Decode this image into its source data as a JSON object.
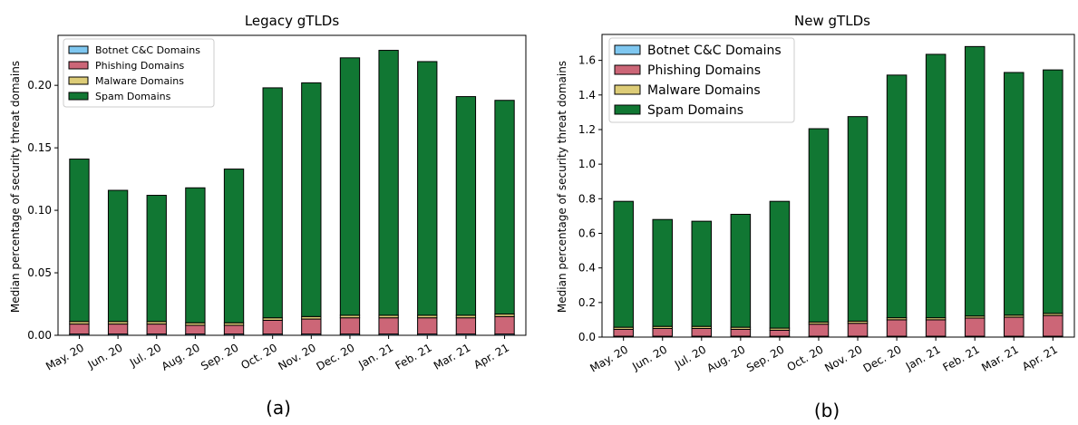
{
  "colors": {
    "botnet": "#7fc7f0",
    "phishing": "#cc6677",
    "malware": "#ddcc77",
    "spam": "#117733",
    "edge": "#000000"
  },
  "chart_data": [
    {
      "type": "bar",
      "stacked": true,
      "panel_label": "(a)",
      "title": "Legacy gTLDs",
      "xlabel": "",
      "ylabel": "Median percentage of security threat domains",
      "categories": [
        "May. 20",
        "Jun. 20",
        "Jul. 20",
        "Aug. 20",
        "Sep. 20",
        "Oct. 20",
        "Nov. 20",
        "Dec. 20",
        "Jan. 21",
        "Feb. 21",
        "Mar. 21",
        "Apr. 21"
      ],
      "ylim": [
        0,
        0.24
      ],
      "yticks": [
        0.0,
        0.05,
        0.1,
        0.15,
        0.2
      ],
      "ytick_labels": [
        "0.00",
        "0.05",
        "0.10",
        "0.15",
        "0.20"
      ],
      "legend_position": "upper-left",
      "grid": false,
      "series": [
        {
          "name": "Botnet C&C Domains",
          "color_key": "botnet",
          "values": [
            0.001,
            0.001,
            0.001,
            0.001,
            0.001,
            0.001,
            0.001,
            0.001,
            0.001,
            0.001,
            0.001,
            0.001
          ]
        },
        {
          "name": "Phishing Domains",
          "color_key": "phishing",
          "values": [
            0.008,
            0.008,
            0.008,
            0.007,
            0.007,
            0.011,
            0.012,
            0.013,
            0.013,
            0.013,
            0.013,
            0.014
          ]
        },
        {
          "name": "Malware Domains",
          "color_key": "malware",
          "values": [
            0.002,
            0.002,
            0.002,
            0.002,
            0.002,
            0.002,
            0.002,
            0.002,
            0.002,
            0.002,
            0.002,
            0.002
          ]
        },
        {
          "name": "Spam Domains",
          "color_key": "spam",
          "values": [
            0.13,
            0.105,
            0.101,
            0.108,
            0.123,
            0.184,
            0.187,
            0.206,
            0.212,
            0.203,
            0.175,
            0.171
          ]
        }
      ]
    },
    {
      "type": "bar",
      "stacked": true,
      "panel_label": "(b)",
      "title": "New gTLDs",
      "xlabel": "",
      "ylabel": "Median percentage of security threat domains",
      "categories": [
        "May. 20",
        "Jun. 20",
        "Jul. 20",
        "Aug. 20",
        "Sep. 20",
        "Oct. 20",
        "Nov. 20",
        "Dec. 20",
        "Jan. 21",
        "Feb. 21",
        "Mar. 21",
        "Apr. 21"
      ],
      "ylim": [
        0,
        1.75
      ],
      "yticks": [
        0.0,
        0.2,
        0.4,
        0.6,
        0.8,
        1.0,
        1.2,
        1.4,
        1.6
      ],
      "ytick_labels": [
        "0.0",
        "0.2",
        "0.4",
        "0.6",
        "0.8",
        "1.0",
        "1.2",
        "1.4",
        "1.6"
      ],
      "legend_position": "upper-left",
      "grid": false,
      "series": [
        {
          "name": "Botnet C&C Domains",
          "color_key": "botnet",
          "values": [
            0.005,
            0.005,
            0.005,
            0.005,
            0.005,
            0.005,
            0.005,
            0.005,
            0.005,
            0.005,
            0.005,
            0.005
          ]
        },
        {
          "name": "Phishing Domains",
          "color_key": "phishing",
          "values": [
            0.04,
            0.045,
            0.045,
            0.04,
            0.035,
            0.07,
            0.075,
            0.095,
            0.095,
            0.105,
            0.11,
            0.12
          ]
        },
        {
          "name": "Malware Domains",
          "color_key": "malware",
          "values": [
            0.012,
            0.012,
            0.012,
            0.012,
            0.012,
            0.012,
            0.012,
            0.012,
            0.012,
            0.012,
            0.012,
            0.012
          ]
        },
        {
          "name": "Spam Domains",
          "color_key": "spam",
          "values": [
            0.728,
            0.618,
            0.608,
            0.653,
            0.733,
            1.118,
            1.183,
            1.403,
            1.523,
            1.558,
            1.403,
            1.408
          ]
        }
      ]
    }
  ]
}
